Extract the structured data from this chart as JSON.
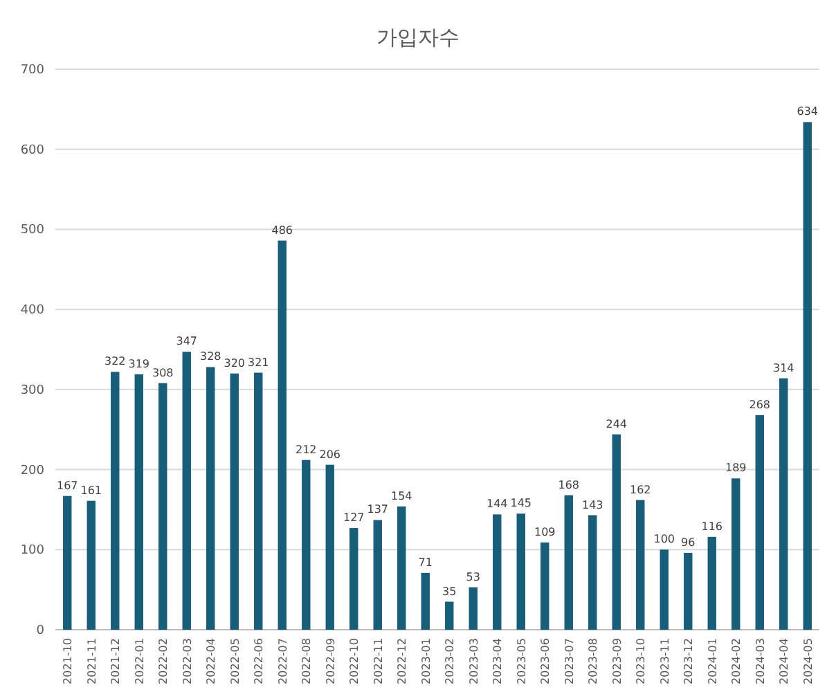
{
  "chart_data": {
    "type": "bar",
    "title": "가입자수",
    "categories": [
      "2021-10",
      "2021-11",
      "2021-12",
      "2022-01",
      "2022-02",
      "2022-03",
      "2022-04",
      "2022-05",
      "2022-06",
      "2022-07",
      "2022-08",
      "2022-09",
      "2022-10",
      "2022-11",
      "2022-12",
      "2023-01",
      "2023-02",
      "2023-03",
      "2023-04",
      "2023-05",
      "2023-06",
      "2023-07",
      "2023-08",
      "2023-09",
      "2023-10",
      "2023-11",
      "2023-12",
      "2024-01",
      "2024-02",
      "2024-03",
      "2024-04",
      "2024-05"
    ],
    "values": [
      167,
      161,
      322,
      319,
      308,
      347,
      328,
      320,
      321,
      486,
      212,
      206,
      127,
      137,
      154,
      71,
      35,
      53,
      144,
      145,
      109,
      168,
      143,
      244,
      162,
      100,
      96,
      116,
      189,
      268,
      314,
      634
    ],
    "color": "#175e7a",
    "ylim": [
      0,
      700
    ],
    "yticks": [
      0,
      100,
      200,
      300,
      400,
      500,
      600,
      700
    ],
    "grid": "y",
    "data_labels": true
  }
}
